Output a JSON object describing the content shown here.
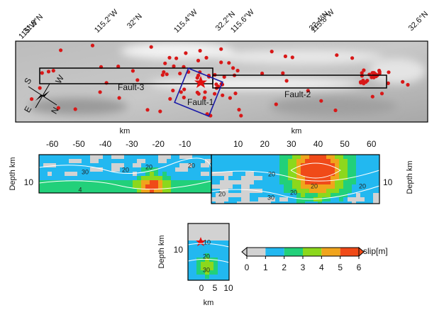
{
  "map": {
    "coordinate_labels": [
      "115°W",
      "31.8°N",
      "115.2°W",
      "32°N",
      "115.4°W",
      "32.2°N",
      "115.6°W",
      "32.4°N",
      "115.8°W",
      "32.6°N"
    ],
    "fault_labels": [
      "Fault-3",
      "Fault-2",
      "Fault-1"
    ],
    "compass": [
      "S",
      "W",
      "E",
      "N"
    ],
    "km_labels": [
      "km",
      "km"
    ]
  },
  "slip_panels": {
    "left": {
      "x_ticks": [
        -60,
        -50,
        -40,
        -30,
        -20,
        -10
      ],
      "y_label": "Depth km",
      "y_ticks": [
        10
      ],
      "contours": [
        "30",
        "20",
        "20",
        "20",
        "4"
      ]
    },
    "right": {
      "x_ticks": [
        10,
        20,
        30,
        40,
        50,
        60
      ],
      "y_label": "Depth km",
      "y_ticks": [
        10
      ],
      "contours": [
        "20",
        "30",
        "20",
        "20",
        "20",
        "20"
      ]
    },
    "fault1": {
      "x_ticks": [
        0,
        5,
        10
      ],
      "x_label": "km",
      "y_label": "Depth km",
      "y_ticks": [
        10
      ],
      "contours": [
        "10",
        "20",
        "30"
      ]
    }
  },
  "colorbar": {
    "ticks": [
      0,
      1,
      2,
      3,
      4,
      5,
      6
    ],
    "label": "slip[m]",
    "colors": [
      "#d2d2d2",
      "#22b8f0",
      "#22d07a",
      "#8cd81c",
      "#f0a41c",
      "#f04a18"
    ]
  }
}
